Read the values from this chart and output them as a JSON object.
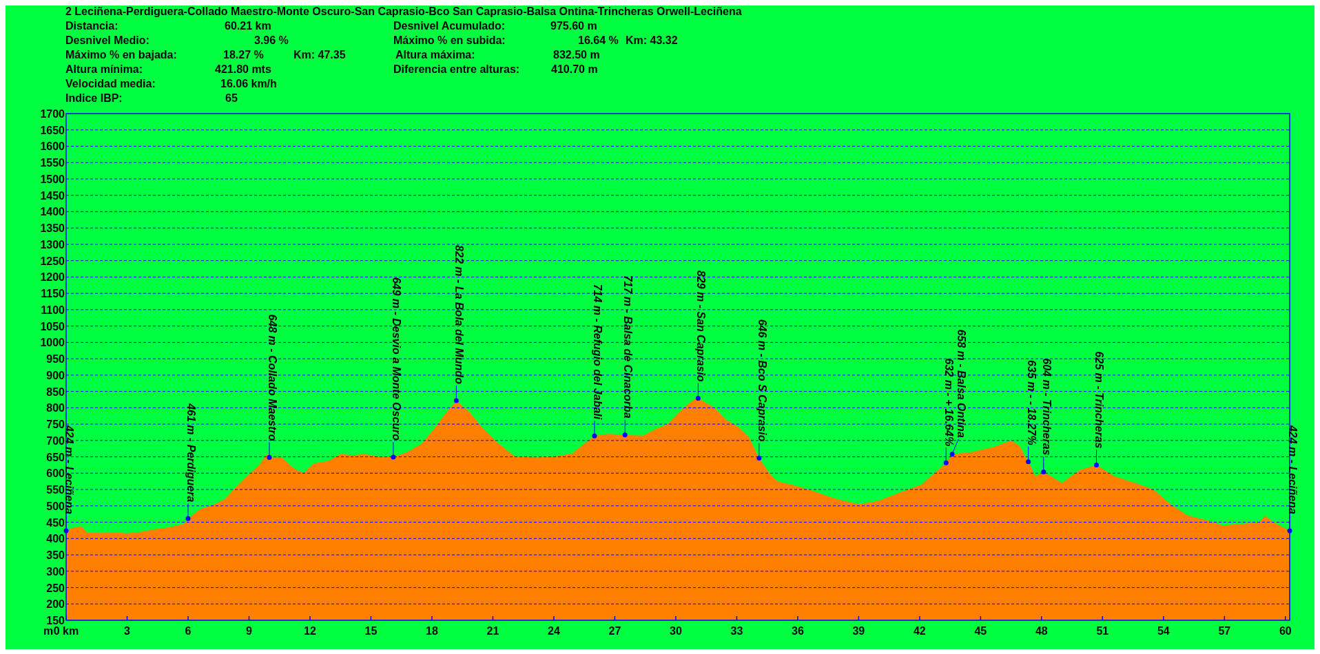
{
  "chart_data": {
    "type": "area",
    "title": "2 Leciñena-Perdiguera-Collado Maestro-Monte Oscuro-San Caprasio-Bco San Caprasio-Balsa Ontina-Trincheras Orwell-Leciñena",
    "ylabel": "m",
    "x": [
      0,
      0.3,
      0.73,
      1.05,
      1.8,
      2.4,
      3.0,
      3.66,
      4.3,
      5.1,
      5.8,
      6.0,
      6.6,
      7.2,
      7.8,
      8.4,
      8.9,
      9.5,
      9.9,
      10.0,
      10.6,
      11.2,
      11.7,
      12.2,
      12.9,
      13.5,
      14.1,
      14.7,
      15.4,
      16.1,
      16.8,
      17.5,
      18.1,
      18.7,
      19.2,
      19.8,
      20.4,
      21.2,
      22.1,
      23.1,
      24.0,
      24.9,
      25.5,
      26.0,
      26.7,
      27.5,
      28.4,
      29.0,
      29.6,
      30.4,
      31.0,
      31.1,
      31.9,
      32.45,
      33.1,
      33.6,
      34.1,
      34.6,
      35.0,
      35.7,
      36.8,
      37.8,
      39.0,
      39.95,
      41.0,
      42.1,
      43.3,
      43.6,
      44.6,
      45.65,
      46.5,
      46.9,
      47.35,
      47.7,
      48.1,
      49.0,
      49.9,
      50.7,
      51.6,
      52.6,
      53.5,
      54.35,
      55.2,
      56.2,
      56.9,
      57.9,
      58.7,
      59.0,
      59.4,
      60.21
    ],
    "series": [
      {
        "color": "#ff8000",
        "values": [
          424,
          432,
          438,
          418,
          417,
          419,
          416,
          420,
          428,
          435,
          445,
          461,
          490,
          502,
          520,
          560,
          590,
          625,
          660,
          648,
          648,
          615,
          600,
          630,
          637,
          658,
          655,
          658,
          650,
          649,
          665,
          690,
          735,
          785,
          822,
          790,
          745,
          695,
          650,
          648,
          650,
          660,
          690,
          714,
          720,
          717,
          715,
          735,
          750,
          800,
          830,
          829,
          800,
          765,
          740,
          710,
          646,
          600,
          575,
          565,
          545,
          523,
          505,
          515,
          540,
          565,
          632,
          658,
          665,
          680,
          700,
          685,
          635,
          590,
          604,
          570,
          610,
          625,
          590,
          570,
          550,
          505,
          470,
          455,
          440,
          445,
          450,
          470,
          450,
          424
        ]
      }
    ],
    "xlim": [
      0,
      60.21
    ],
    "ylim": [
      150,
      1700
    ],
    "xticks": [
      {
        "value": 0,
        "label": "0 km"
      },
      3,
      6,
      9,
      12,
      15,
      18,
      21,
      24,
      27,
      30,
      33,
      36,
      39,
      42,
      45,
      48,
      51,
      54,
      57,
      60
    ],
    "yticks": [
      150,
      200,
      250,
      300,
      350,
      400,
      450,
      500,
      550,
      600,
      650,
      700,
      750,
      800,
      850,
      900,
      950,
      1000,
      1050,
      1100,
      1150,
      1200,
      1250,
      1300,
      1350,
      1400,
      1450,
      1500,
      1550,
      1600,
      1650,
      1700
    ],
    "grid": "y",
    "annotations": [
      "Distancia:",
      "60.21 km",
      "Desnivel Medio:",
      "3.96 %",
      "Máximo % en bajada:",
      "18.27 %",
      "Km: 47.35",
      "Altura mínima:",
      "421.80 mts",
      "Velocidad media:",
      "16.06 km/h",
      "Indice IBP:",
      "65",
      "Desnivel Acumulado:",
      "975.60 m",
      "Máximo % en subida:",
      "16.64 %",
      "Km: 43.32",
      "Altura máxima:",
      "832.50 m",
      "Diferencia entre alturas:",
      "410.70 m",
      {
        "text": "424 m - Leciñena",
        "x": 0,
        "y": 424
      },
      {
        "text": "461 m - Perdiguera",
        "x": 6.0,
        "y": 461
      },
      {
        "text": "648 m - Collado Maestro",
        "x": 10.0,
        "y": 648
      },
      {
        "text": "649 m - Desvio a Monte Oscuro",
        "x": 16.1,
        "y": 649
      },
      {
        "text": "822 m - La Bola del Mundo",
        "x": 19.2,
        "y": 822
      },
      {
        "text": "714 m - Refugio del Jabali",
        "x": 26.0,
        "y": 714
      },
      {
        "text": "717 m - Balsa de Cinacorba",
        "x": 27.5,
        "y": 717
      },
      {
        "text": "829 m - San Caprasio",
        "x": 31.1,
        "y": 829
      },
      {
        "text": "646 m - Bco S Caprasio",
        "x": 34.1,
        "y": 646
      },
      {
        "text": "632 m - + 16.64%",
        "x": 43.3,
        "y": 632
      },
      {
        "text": "658 m - Balsa Ontina",
        "x": 43.6,
        "y": 658
      },
      {
        "text": "635 m - - 18.27%",
        "x": 47.35,
        "y": 635
      },
      {
        "text": "604 m - Trincheras",
        "x": 48.1,
        "y": 604
      },
      {
        "text": "625 m - Trincheras",
        "x": 50.7,
        "y": 625
      },
      {
        "text": "424 m - Leciñena",
        "x": 60.21,
        "y": 424
      }
    ]
  }
}
